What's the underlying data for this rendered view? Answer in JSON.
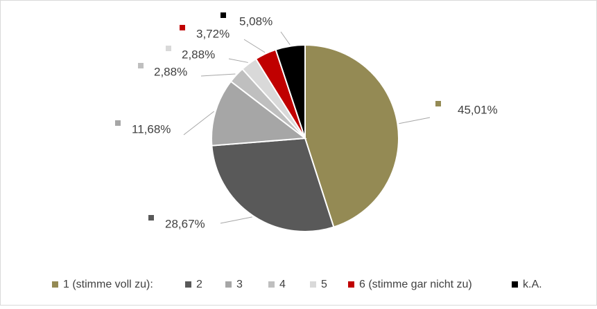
{
  "chart_data": {
    "type": "pie",
    "categories": [
      "1 (stimme voll zu):",
      "2",
      "3",
      "4",
      "5",
      "6 (stimme gar nicht zu)",
      "k.A."
    ],
    "values": [
      45.01,
      28.67,
      11.68,
      2.88,
      2.88,
      3.72,
      5.08
    ],
    "value_labels": [
      "45,01%",
      "28,67%",
      "11,68%",
      "2,88%",
      "2,88%",
      "3,72%",
      "5,08%"
    ],
    "colors": [
      "#948a54",
      "#595959",
      "#a6a6a6",
      "#bfbfbf",
      "#d9d9d9",
      "#c00000",
      "#000000"
    ],
    "legend": "bottom"
  }
}
